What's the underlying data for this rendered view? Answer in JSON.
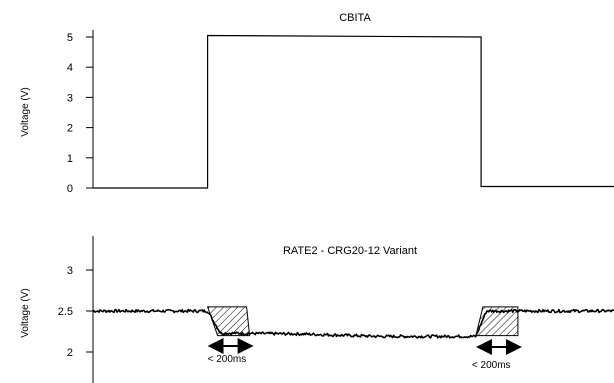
{
  "chart_data": [
    {
      "type": "line",
      "title": "CBITA",
      "ylabel": "Voltage (V)",
      "xlabel": "",
      "ylim": [
        0,
        5
      ],
      "yticks": [
        "0",
        "1",
        "2",
        "3",
        "4",
        "5"
      ],
      "series": [
        {
          "x": [
            0,
            0.22,
            0.22,
            0.745,
            0.745,
            1.0
          ],
          "y": [
            0,
            0,
            5.05,
            5.0,
            0.05,
            0.05
          ]
        }
      ]
    },
    {
      "type": "line",
      "title": "RATE2 - CRG20-12 Variant",
      "ylabel": "Voltage (V)",
      "xlabel": "",
      "ylim": [
        1.65,
        3.4
      ],
      "yticks": [
        "2",
        "2.5",
        "3"
      ],
      "series": [
        {
          "x": [
            0,
            0.22,
            0.245,
            0.4,
            0.55,
            0.735,
            0.755,
            1.0
          ],
          "y": [
            2.5,
            2.5,
            2.23,
            2.22,
            2.19,
            2.19,
            2.5,
            2.5
          ]
        }
      ],
      "annotations": [
        {
          "text": "< 200ms",
          "x": 0.22
        },
        {
          "text": "< 200ms",
          "x": 0.735
        }
      ]
    }
  ]
}
